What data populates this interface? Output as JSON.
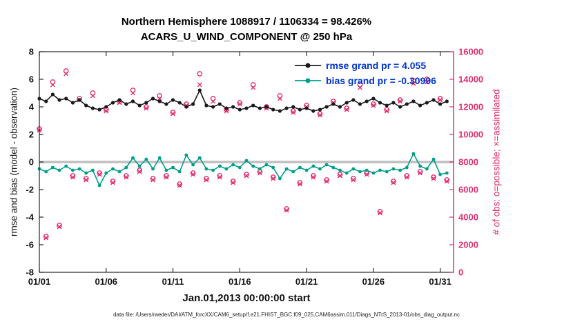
{
  "header": {
    "title_line1": "Northern Hemisphere 1088917 / 1106334 = 98.426%",
    "title_line2": "ACARS_U_WIND_COMPONENT @ 250 hPa"
  },
  "axes": {
    "ylabel_left": "rmse and bias (model - observation)",
    "ylabel_right": "# of obs: o=possible; ×=assimilated",
    "xlabel": "Jan.01,2013 00:00:00 start"
  },
  "footer": {
    "caption": "data file: /Users/raeder/DAI/ATM_forcXX/CAM6_setup/f.e21.FHIST_BGC.f09_025.CAM6assim.011/Diags_NTrS_2013-01/obs_diag_output.nc"
  },
  "colors": {
    "rmse": "#1a1a1a",
    "bias": "#009e8a",
    "obs": "#e52a6f",
    "legend_text": "#0033cc",
    "zero_line": "#bfbfbf"
  },
  "chart_data": {
    "type": "line",
    "grid": false,
    "legend_position": "top-right",
    "x0": 1,
    "dx": 0.5,
    "xlim": [
      1,
      32
    ],
    "ylim_left": [
      -8,
      8
    ],
    "ylim_right": [
      0,
      16000
    ],
    "xtick_days": [
      1,
      6,
      11,
      16,
      21,
      26,
      31
    ],
    "xtick_labels": [
      "01/01",
      "01/06",
      "01/11",
      "01/16",
      "01/21",
      "01/26",
      "01/31"
    ],
    "yticks_left": [
      -8,
      -6,
      -4,
      -2,
      0,
      2,
      4,
      6,
      8
    ],
    "yticks_right": [
      0,
      2000,
      4000,
      6000,
      8000,
      10000,
      12000,
      14000,
      16000
    ],
    "series": [
      {
        "name": "rmse",
        "legend": "rmse grand pr = 4.055",
        "values": [
          4.6,
          4.4,
          4.9,
          4.5,
          4.6,
          4.3,
          4.5,
          4.1,
          3.9,
          3.8,
          4.0,
          4.3,
          4.5,
          4.2,
          4.4,
          4.1,
          4.3,
          4.6,
          4.4,
          4.2,
          4.5,
          4.3,
          4.0,
          4.2,
          5.2,
          4.1,
          4.0,
          4.2,
          3.9,
          4.0,
          3.8,
          3.9,
          4.1,
          3.9,
          4.0,
          3.8,
          3.7,
          3.9,
          4.0,
          3.8,
          3.9,
          3.7,
          3.8,
          4.0,
          4.2,
          4.0,
          4.3,
          4.5,
          4.2,
          4.4,
          4.6,
          4.3,
          4.1,
          4.3,
          4.0,
          4.2,
          4.4,
          4.1,
          4.3,
          4.5,
          4.2,
          4.4
        ]
      },
      {
        "name": "bias",
        "legend": "bias grand pr = -0.30996",
        "values": [
          -0.5,
          -0.7,
          -0.4,
          -0.6,
          -0.3,
          -0.6,
          -0.5,
          -0.8,
          -0.6,
          -1.7,
          -0.8,
          -0.5,
          -0.7,
          -0.4,
          0.3,
          -0.3,
          0.2,
          -0.5,
          0.3,
          -0.6,
          -0.4,
          -0.7,
          0.5,
          -0.2,
          0.3,
          -0.5,
          -0.6,
          -0.3,
          -0.5,
          -0.2,
          -0.4,
          0.1,
          -0.3,
          -0.5,
          -0.2,
          -0.4,
          -1.2,
          -0.5,
          -0.7,
          -0.4,
          -0.6,
          -0.3,
          -0.5,
          -0.2,
          -0.4,
          -0.6,
          -0.8,
          -0.5,
          -0.7,
          -0.6,
          -0.8,
          -0.6,
          -0.7,
          -0.5,
          -0.6,
          -0.4,
          0.6,
          -0.3,
          -0.5,
          0.2,
          -0.9,
          -0.8
        ]
      }
    ],
    "obs_possible": [
      10400,
      2600,
      13800,
      3400,
      14600,
      7000,
      12600,
      6800,
      13000,
      7200,
      11800,
      6600,
      12400,
      7000,
      13200,
      7400,
      12000,
      6800,
      12800,
      7000,
      11600,
      6400,
      12200,
      7200,
      14400,
      6800,
      12600,
      7000,
      11800,
      6600,
      12300,
      7100,
      13600,
      7300,
      12000,
      6900,
      12800,
      4600,
      11700,
      6500,
      12100,
      7000,
      11500,
      6700,
      12400,
      7100,
      11900,
      6800,
      13600,
      7200,
      12200,
      4400,
      11800,
      6600,
      12500,
      7000,
      13900,
      7300,
      14000,
      6900,
      12600,
      6700
    ],
    "obs_assimilated": [
      10300,
      2500,
      13600,
      3300,
      14400,
      6900,
      12500,
      6700,
      12800,
      7100,
      11700,
      6500,
      12300,
      6900,
      13000,
      7300,
      11900,
      6700,
      12600,
      6900,
      11500,
      6300,
      12100,
      7100,
      13600,
      6700,
      12400,
      6900,
      11700,
      6500,
      12200,
      7000,
      13400,
      7200,
      11900,
      6800,
      12600,
      4500,
      11600,
      6400,
      12000,
      6900,
      11400,
      6600,
      12300,
      7000,
      11800,
      6700,
      13400,
      7100,
      12100,
      4300,
      11700,
      6500,
      12400,
      6900,
      13700,
      7200,
      13800,
      6800,
      12500,
      6600
    ]
  }
}
